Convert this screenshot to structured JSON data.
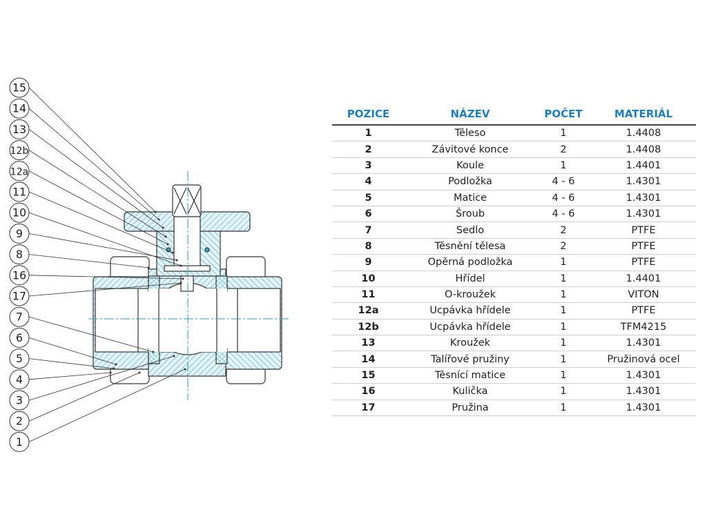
{
  "colors": {
    "header": "#1b7fc2",
    "hatch": "#3aa9c4",
    "centerline": "#2a9ec0",
    "outline": "#333333"
  },
  "callouts": [
    "15",
    "14",
    "13",
    "12b",
    "12a",
    "11",
    "10",
    "9",
    "8",
    "16",
    "17",
    "7",
    "6",
    "5",
    "4",
    "3",
    "2",
    "1"
  ],
  "table": {
    "headers": [
      "POZICE",
      "NÁZEV",
      "POČET",
      "MATERIÁL"
    ],
    "rows": [
      [
        "1",
        "Těleso",
        "1",
        "1.4408"
      ],
      [
        "2",
        "Závitové konce",
        "2",
        "1.4408"
      ],
      [
        "3",
        "Koule",
        "1",
        "1.4401"
      ],
      [
        "4",
        "Podložka",
        "4 - 6",
        "1.4301"
      ],
      [
        "5",
        "Matice",
        "4 - 6",
        "1.4301"
      ],
      [
        "6",
        "Šroub",
        "4 - 6",
        "1.4301"
      ],
      [
        "7",
        "Sedlo",
        "2",
        "PTFE"
      ],
      [
        "8",
        "Těsnění tělesa",
        "2",
        "PTFE"
      ],
      [
        "9",
        "Opěrná podložka",
        "1",
        "PTFE"
      ],
      [
        "10",
        "Hřídel",
        "1",
        "1.4401"
      ],
      [
        "11",
        "O-kroužek",
        "1",
        "VITON"
      ],
      [
        "12a",
        "Ucpávka hřídele",
        "1",
        "PTFE"
      ],
      [
        "12b",
        "Ucpávka hřídele",
        "1",
        "TFM4215"
      ],
      [
        "13",
        "Kroužek",
        "1",
        "1.4301"
      ],
      [
        "14",
        "Talířové pružiny",
        "1",
        "Pružinová ocel"
      ],
      [
        "15",
        "Těsnící matice",
        "1",
        "1.4301"
      ],
      [
        "16",
        "Kulička",
        "1",
        "1.4301"
      ],
      [
        "17",
        "Pružina",
        "1",
        "1.4301"
      ]
    ]
  }
}
